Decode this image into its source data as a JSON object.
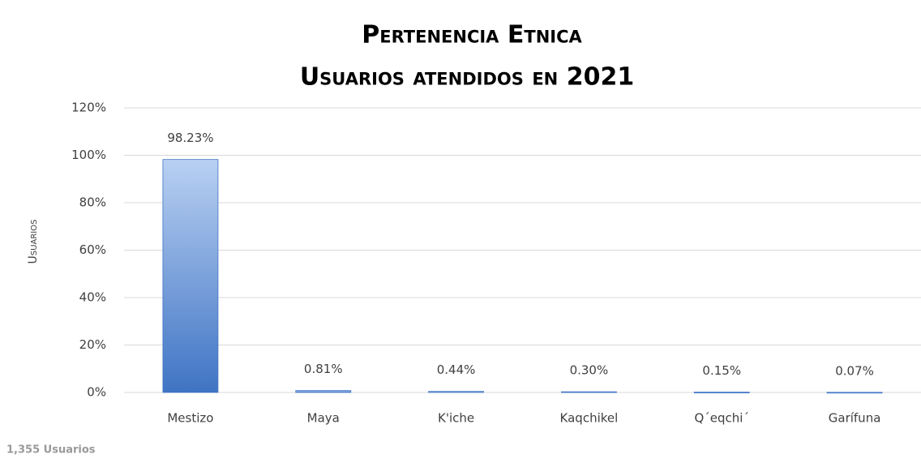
{
  "chart_data": {
    "type": "bar",
    "title": "Pertenencia Etnica",
    "subtitle": "Usuarios atendidos en 2021",
    "y_label": "Usuarios",
    "footnote": "1,355 Usuarios",
    "categories": [
      "Mestizo",
      "Maya",
      "K'iche",
      "Kaqchikel",
      "Q´eqchi´",
      "Garífuna"
    ],
    "values": [
      98.23,
      0.81,
      0.44,
      0.3,
      0.15,
      0.07
    ],
    "value_labels": [
      "98.23%",
      "0.81%",
      "0.44%",
      "0.30%",
      "0.15%",
      "0.07%"
    ],
    "color": "#3f74c4",
    "ylim": [
      0,
      120
    ],
    "yticks": [
      {
        "value": 0,
        "label": "0%"
      },
      {
        "value": 20,
        "label": "20%"
      },
      {
        "value": 40,
        "label": "40%"
      },
      {
        "value": 60,
        "label": "60%"
      },
      {
        "value": 80,
        "label": "80%"
      },
      {
        "value": 100,
        "label": "100%"
      },
      {
        "value": 120,
        "label": "120%"
      }
    ],
    "grid": true
  }
}
